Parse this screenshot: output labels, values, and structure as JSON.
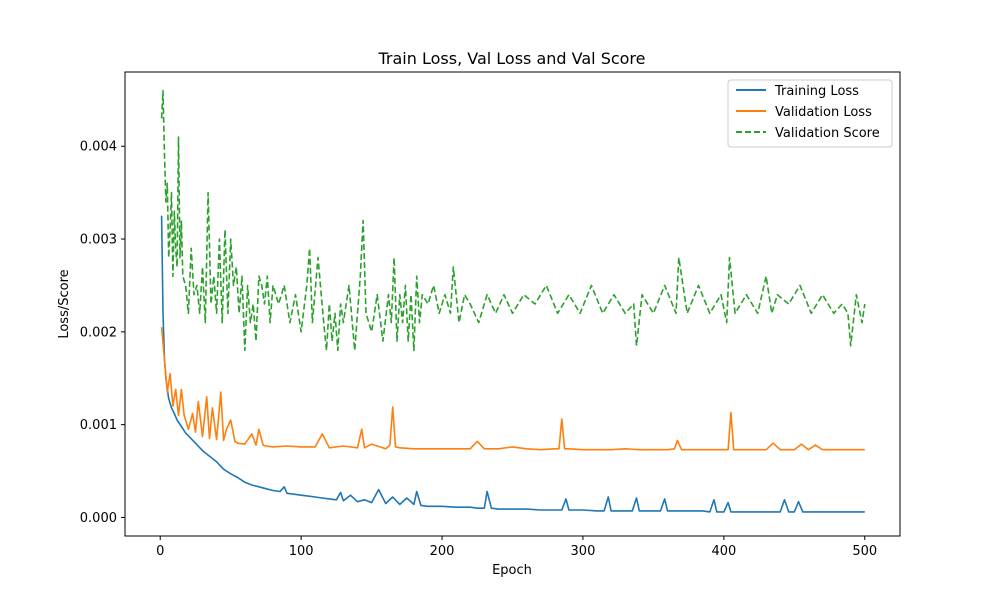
{
  "chart_data": {
    "type": "line",
    "title": "Train Loss, Val Loss and Val Score",
    "xlabel": "Epoch",
    "ylabel": "Loss/Score",
    "xlim": [
      -25,
      525
    ],
    "ylim": [
      -0.0002,
      0.0048
    ],
    "xticks": [
      0,
      100,
      200,
      300,
      400,
      500
    ],
    "yticks": [
      0.0,
      0.001,
      0.002,
      0.003,
      0.004
    ],
    "ytick_labels": [
      "0.000",
      "0.001",
      "0.002",
      "0.003",
      "0.004"
    ],
    "grid": false,
    "legend_position": "top-right",
    "series": [
      {
        "name": "Training Loss",
        "color": "#1f77b4",
        "style": "solid",
        "x": [
          1,
          2,
          3,
          4,
          5,
          6,
          8,
          10,
          12,
          15,
          18,
          20,
          25,
          30,
          35,
          40,
          45,
          50,
          55,
          60,
          65,
          70,
          75,
          80,
          85,
          88,
          90,
          95,
          100,
          105,
          110,
          115,
          120,
          125,
          128,
          130,
          135,
          140,
          145,
          150,
          155,
          160,
          165,
          170,
          175,
          180,
          182,
          185,
          190,
          200,
          210,
          220,
          225,
          230,
          232,
          235,
          240,
          250,
          260,
          270,
          280,
          285,
          288,
          290,
          300,
          310,
          315,
          318,
          320,
          330,
          335,
          338,
          340,
          350,
          355,
          358,
          360,
          370,
          380,
          385,
          390,
          393,
          395,
          400,
          403,
          405,
          410,
          420,
          430,
          440,
          443,
          446,
          450,
          453,
          456,
          460,
          470,
          480,
          490,
          500
        ],
        "y": [
          0.00325,
          0.0022,
          0.0017,
          0.0015,
          0.00138,
          0.00128,
          0.00118,
          0.00112,
          0.00105,
          0.00098,
          0.00091,
          0.00088,
          0.0008,
          0.00072,
          0.00066,
          0.0006,
          0.00052,
          0.00047,
          0.00043,
          0.00038,
          0.00035,
          0.00033,
          0.00031,
          0.00029,
          0.00028,
          0.00033,
          0.00026,
          0.00025,
          0.00024,
          0.00023,
          0.00022,
          0.00021,
          0.0002,
          0.00019,
          0.00027,
          0.00018,
          0.00024,
          0.00017,
          0.00019,
          0.00016,
          0.0003,
          0.00015,
          0.00022,
          0.00014,
          0.00021,
          0.00014,
          0.00028,
          0.00013,
          0.00012,
          0.00012,
          0.00011,
          0.00011,
          0.0001,
          0.0001,
          0.00028,
          0.0001,
          9e-05,
          9e-05,
          9e-05,
          8e-05,
          8e-05,
          8e-05,
          0.0002,
          8e-05,
          8e-05,
          7e-05,
          7e-05,
          0.00022,
          7e-05,
          7e-05,
          7e-05,
          0.00021,
          7e-05,
          7e-05,
          7e-05,
          0.0002,
          7e-05,
          7e-05,
          7e-05,
          7e-05,
          6e-05,
          0.00019,
          6e-05,
          6e-05,
          0.00016,
          6e-05,
          6e-05,
          6e-05,
          6e-05,
          6e-05,
          0.00019,
          6e-05,
          6e-05,
          0.00017,
          6e-05,
          6e-05,
          6e-05,
          6e-05,
          6e-05,
          6e-05
        ]
      },
      {
        "name": "Validation Loss",
        "color": "#ff7f0e",
        "style": "solid",
        "x": [
          1,
          3,
          5,
          7,
          9,
          11,
          13,
          15,
          17,
          20,
          23,
          25,
          27,
          30,
          33,
          35,
          37,
          40,
          43,
          45,
          47,
          50,
          53,
          55,
          60,
          65,
          68,
          70,
          73,
          75,
          80,
          90,
          100,
          110,
          115,
          120,
          130,
          140,
          143,
          145,
          150,
          160,
          163,
          165,
          167,
          170,
          180,
          190,
          200,
          210,
          220,
          225,
          230,
          240,
          250,
          260,
          270,
          280,
          283,
          285,
          287,
          290,
          300,
          320,
          330,
          340,
          350,
          360,
          365,
          367,
          370,
          380,
          390,
          400,
          403,
          405,
          407,
          410,
          420,
          430,
          435,
          440,
          450,
          455,
          460,
          465,
          470,
          480,
          490,
          500
        ],
        "y": [
          0.00205,
          0.0017,
          0.00135,
          0.00155,
          0.0012,
          0.00138,
          0.0011,
          0.00138,
          0.0011,
          0.00095,
          0.00112,
          0.00092,
          0.00125,
          0.00087,
          0.0013,
          0.00085,
          0.00118,
          0.00084,
          0.00135,
          0.00083,
          0.00095,
          0.00105,
          0.00082,
          0.0008,
          0.00079,
          0.0009,
          0.00078,
          0.00095,
          0.00078,
          0.00077,
          0.00076,
          0.00077,
          0.00076,
          0.00076,
          0.0009,
          0.00075,
          0.00077,
          0.00075,
          0.00095,
          0.00075,
          0.00079,
          0.00074,
          0.00078,
          0.00119,
          0.00076,
          0.00075,
          0.00074,
          0.00074,
          0.00074,
          0.00074,
          0.00074,
          0.00082,
          0.00074,
          0.00074,
          0.00076,
          0.00074,
          0.00073,
          0.00074,
          0.00074,
          0.00106,
          0.00074,
          0.00074,
          0.00073,
          0.00073,
          0.00074,
          0.00073,
          0.00073,
          0.00073,
          0.00074,
          0.00083,
          0.00073,
          0.00073,
          0.00073,
          0.00073,
          0.00073,
          0.00113,
          0.00073,
          0.00073,
          0.00073,
          0.00073,
          0.0008,
          0.00073,
          0.00073,
          0.00079,
          0.00073,
          0.00078,
          0.00073,
          0.00073,
          0.00073,
          0.00073
        ]
      },
      {
        "name": "Validation Score",
        "color": "#2ca02c",
        "style": "dashed",
        "x": [
          1,
          2,
          3,
          4,
          5,
          6,
          7,
          8,
          9,
          10,
          11,
          12,
          13,
          14,
          15,
          16,
          18,
          20,
          22,
          24,
          26,
          28,
          30,
          32,
          34,
          36,
          38,
          40,
          42,
          44,
          46,
          48,
          50,
          52,
          54,
          56,
          58,
          60,
          62,
          64,
          66,
          68,
          70,
          72,
          74,
          76,
          78,
          80,
          84,
          88,
          92,
          96,
          100,
          104,
          106,
          108,
          112,
          116,
          118,
          120,
          122,
          124,
          126,
          128,
          130,
          134,
          138,
          142,
          144,
          146,
          150,
          154,
          158,
          162,
          164,
          166,
          168,
          170,
          172,
          174,
          176,
          178,
          180,
          182,
          184,
          186,
          190,
          194,
          198,
          202,
          206,
          208,
          212,
          216,
          220,
          226,
          232,
          238,
          244,
          250,
          258,
          266,
          274,
          282,
          290,
          298,
          306,
          314,
          322,
          330,
          336,
          338,
          342,
          350,
          358,
          366,
          368,
          374,
          382,
          390,
          398,
          402,
          404,
          408,
          416,
          424,
          430,
          434,
          438,
          446,
          454,
          462,
          470,
          478,
          484,
          488,
          490,
          494,
          498,
          500
        ],
        "y": [
          0.0043,
          0.0046,
          0.0039,
          0.0034,
          0.0036,
          0.0028,
          0.0031,
          0.0035,
          0.0026,
          0.0033,
          0.0029,
          0.0027,
          0.0041,
          0.0028,
          0.0032,
          0.0026,
          0.0025,
          0.0022,
          0.0029,
          0.0024,
          0.0025,
          0.0022,
          0.0027,
          0.0021,
          0.0035,
          0.0023,
          0.0026,
          0.0022,
          0.003,
          0.0021,
          0.0031,
          0.0022,
          0.003,
          0.0025,
          0.0027,
          0.0022,
          0.0026,
          0.0018,
          0.0025,
          0.0021,
          0.0023,
          0.0019,
          0.0026,
          0.0025,
          0.0023,
          0.0026,
          0.0021,
          0.0025,
          0.0023,
          0.0025,
          0.0021,
          0.0024,
          0.002,
          0.0025,
          0.0029,
          0.0021,
          0.0028,
          0.0021,
          0.0018,
          0.0023,
          0.0019,
          0.0022,
          0.0018,
          0.0023,
          0.0021,
          0.0025,
          0.0018,
          0.0026,
          0.0032,
          0.0022,
          0.002,
          0.0024,
          0.0019,
          0.0024,
          0.0021,
          0.0028,
          0.0019,
          0.0024,
          0.0021,
          0.0025,
          0.0019,
          0.0024,
          0.0018,
          0.0026,
          0.0021,
          0.0024,
          0.0023,
          0.0025,
          0.0022,
          0.0024,
          0.0022,
          0.0027,
          0.0021,
          0.0024,
          0.0023,
          0.0021,
          0.0024,
          0.0022,
          0.0024,
          0.0022,
          0.0024,
          0.0023,
          0.0025,
          0.0022,
          0.0024,
          0.0022,
          0.0025,
          0.0022,
          0.0024,
          0.0022,
          0.0023,
          0.00185,
          0.0024,
          0.0022,
          0.0025,
          0.0022,
          0.0028,
          0.0022,
          0.0025,
          0.0022,
          0.0024,
          0.0021,
          0.0028,
          0.0022,
          0.0024,
          0.0022,
          0.0026,
          0.0022,
          0.0024,
          0.0023,
          0.0025,
          0.0022,
          0.0024,
          0.0022,
          0.0023,
          0.0022,
          0.00185,
          0.0024,
          0.0021,
          0.0023
        ]
      }
    ]
  }
}
